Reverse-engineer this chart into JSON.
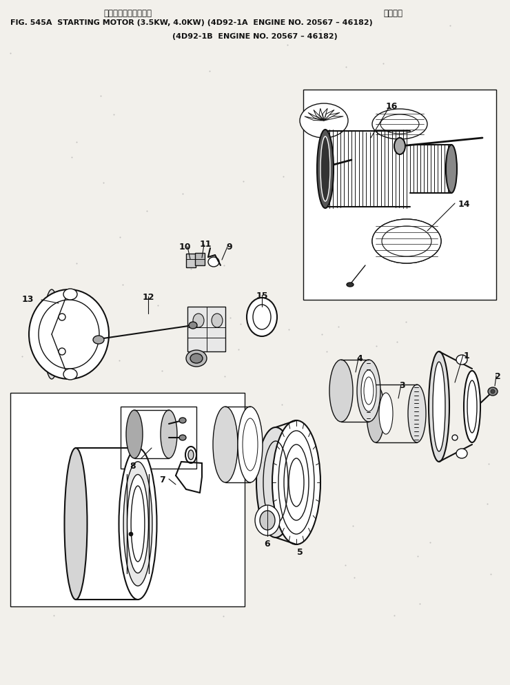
{
  "bg_color": "#f2f0eb",
  "line_color": "#111111",
  "title_jp_left": "スターティングモータ",
  "title_jp_right": "適用号機",
  "title_main": "FIG. 545A  STARTING MOTOR (3.5KW, 4.0KW) (4D92-1A  ENGINE NO. 20567 – 46182)",
  "title_sub": "(4D92-1B  ENGINE NO. 20567 – 46182)",
  "fig_width": 7.4,
  "fig_height": 9.94,
  "dpi": 100
}
